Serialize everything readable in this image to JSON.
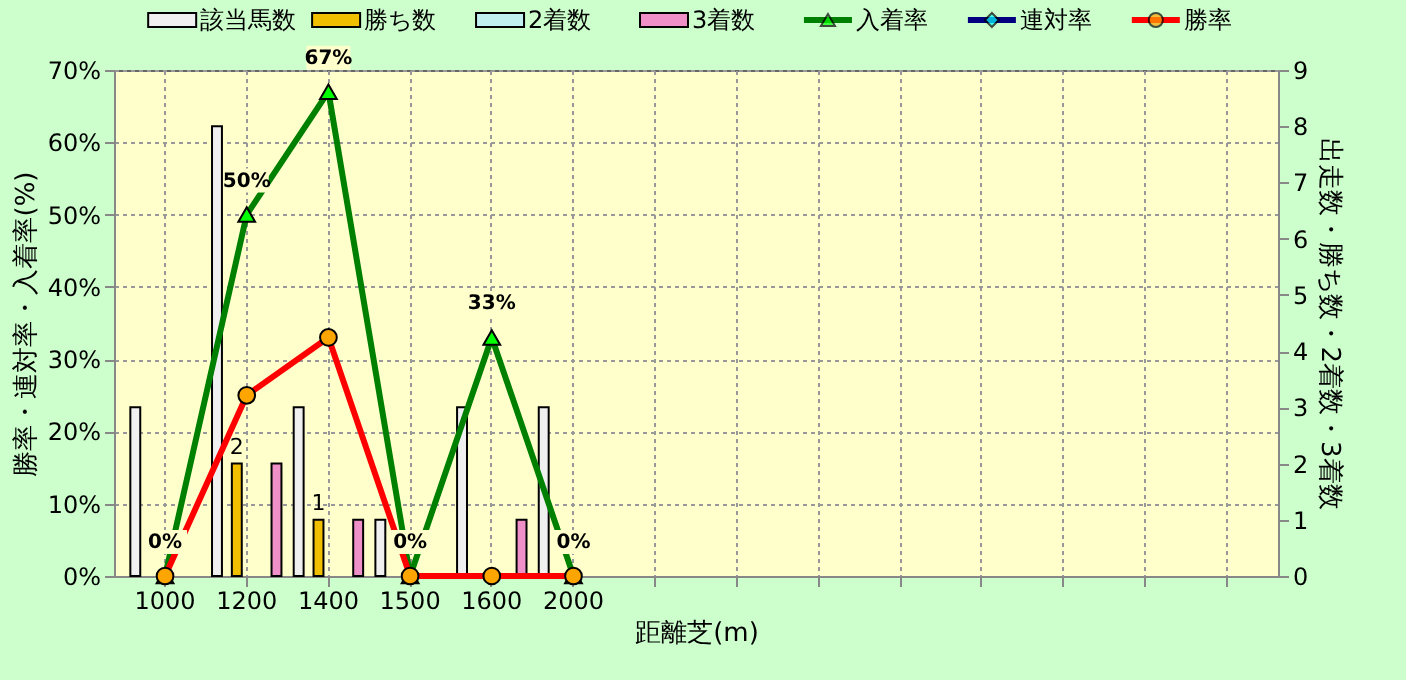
{
  "chart_data": {
    "type": "bar",
    "xlabel": "距離芝(m)",
    "ylabel": "勝率・連対率・入着率(%)",
    "y2label": "出走数・勝ち数・2着数・3着数",
    "categories": [
      "1000",
      "1200",
      "1400",
      "1500",
      "1600",
      "2000",
      null,
      null,
      null,
      null,
      null,
      null,
      null,
      null
    ],
    "series": [
      {
        "name": "該当馬数",
        "axis": "y2",
        "color": "#f0f0f0",
        "values": [
          3,
          8,
          3,
          1,
          3,
          3,
          null,
          null,
          null,
          null,
          null,
          null,
          null,
          null
        ]
      },
      {
        "name": "勝ち数",
        "axis": "y2",
        "color": "#f0c000",
        "values": [
          0,
          2,
          1,
          0,
          0,
          0,
          null,
          null,
          null,
          null,
          null,
          null,
          null,
          null
        ],
        "value_labels": [
          null,
          "2",
          "1",
          null,
          null,
          null,
          null,
          null,
          null,
          null,
          null,
          null,
          null,
          null
        ]
      },
      {
        "name": "2着数",
        "axis": "y2",
        "color": "#c0f0f0",
        "values": [
          0,
          0,
          0,
          0,
          0,
          0,
          null,
          null,
          null,
          null,
          null,
          null,
          null,
          null
        ]
      },
      {
        "name": "3着数",
        "axis": "y2",
        "color": "#f090c8",
        "values": [
          0,
          2,
          1,
          0,
          1,
          0,
          null,
          null,
          null,
          null,
          null,
          null,
          null,
          null
        ]
      },
      {
        "name": "入着率",
        "type": "line",
        "axis": "y",
        "marker": "triangle",
        "color": "#008000",
        "values": [
          0,
          50,
          67,
          0,
          33,
          0,
          null,
          null,
          null,
          null,
          null,
          null,
          null,
          null
        ],
        "value_labels": [
          "0%",
          "50%",
          "67%",
          "0%",
          "33%",
          "0%",
          null,
          null,
          null,
          null,
          null,
          null,
          null,
          null
        ]
      },
      {
        "name": "連対率",
        "type": "line",
        "axis": "y",
        "marker": "diamond",
        "color": "#000080",
        "values": [
          null,
          null,
          null,
          null,
          null,
          null,
          null,
          null,
          null,
          null,
          null,
          null,
          null,
          null
        ]
      },
      {
        "name": "勝率",
        "type": "line",
        "axis": "y",
        "marker": "circle",
        "color": "#ff0000",
        "values": [
          0,
          25,
          33,
          0,
          0,
          0,
          null,
          null,
          null,
          null,
          null,
          null,
          null,
          null
        ]
      }
    ],
    "ylim": [
      0,
      70
    ],
    "yticks": [
      {
        "value": 0,
        "label": "0%"
      },
      {
        "value": 10,
        "label": "10%"
      },
      {
        "value": 20,
        "label": "20%"
      },
      {
        "value": 30,
        "label": "30%"
      },
      {
        "value": 40,
        "label": "40%"
      },
      {
        "value": 50,
        "label": "50%"
      },
      {
        "value": 60,
        "label": "60%"
      },
      {
        "value": 70,
        "label": "70%"
      }
    ],
    "y2lim": [
      0,
      9
    ],
    "y2ticks": [
      0,
      1,
      2,
      3,
      4,
      5,
      6,
      7,
      8,
      9
    ],
    "grid": true,
    "legend": "top",
    "line_style": "solid"
  }
}
